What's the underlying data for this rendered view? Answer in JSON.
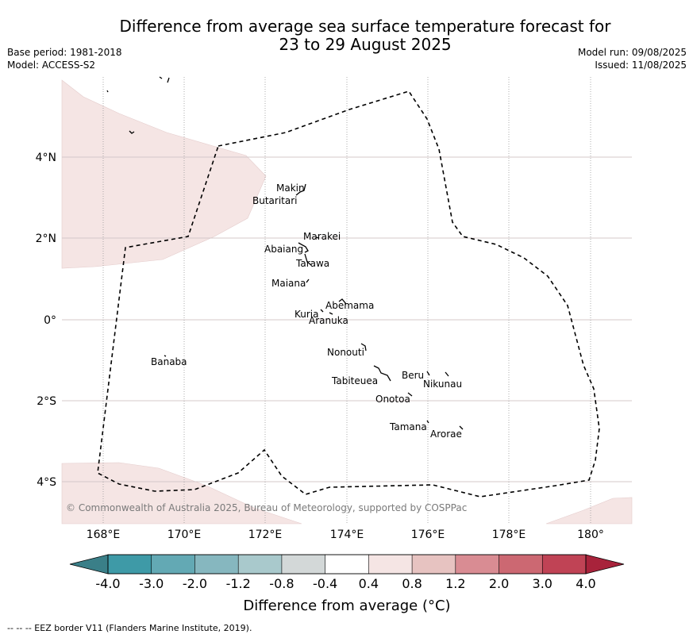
{
  "title_line1": "Difference from average sea surface temperature forecast for",
  "title_line2": "23 to 29 August 2025",
  "base_period": "Base period: 1981-2018",
  "model": "Model: ACCESS-S2",
  "model_run": "Model run: 09/08/2025",
  "issued": "Issued: 11/08/2025",
  "copyright": "© Commonwealth of Australia 2025, Bureau of Meteorology, supported by COSPPac",
  "lon_ticks": [
    "168°E",
    "170°E",
    "172°E",
    "174°E",
    "176°E",
    "178°E",
    "180°"
  ],
  "lat_ticks": [
    "4°N",
    "2°N",
    "0°",
    "2°S",
    "4°S"
  ],
  "islands": [
    {
      "name": "Makin"
    },
    {
      "name": "Butaritari"
    },
    {
      "name": "Marakei"
    },
    {
      "name": "Abaiang"
    },
    {
      "name": "Tarawa"
    },
    {
      "name": "Maiana"
    },
    {
      "name": "Abemama"
    },
    {
      "name": "Kuria"
    },
    {
      "name": "Aranuka"
    },
    {
      "name": "Nonouti"
    },
    {
      "name": "Banaba"
    },
    {
      "name": "Beru"
    },
    {
      "name": "Nikunau"
    },
    {
      "name": "Tabiteuea"
    },
    {
      "name": "Onotoa"
    },
    {
      "name": "Tamana"
    },
    {
      "name": "Arorae"
    }
  ],
  "colorbar": {
    "tick_labels": [
      "-4.0",
      "-3.0",
      "-2.0",
      "-1.2",
      "-0.8",
      "-0.4",
      "0.4",
      "0.8",
      "1.2",
      "2.0",
      "3.0",
      "4.0"
    ],
    "colors": [
      "#3e9aa7",
      "#63a9b4",
      "#86b7bf",
      "#a9c9cc",
      "#d3d8d8",
      "#ffffff",
      "#f5e5e4",
      "#e7c3c1",
      "#d98c93",
      "#cc6872",
      "#c04355"
    ],
    "under_color": "#3a7f88",
    "over_color": "#a8233b",
    "label": "Difference from average (°C)"
  },
  "legend_footer": "-- -- -- EEZ border V11 (Flanders Marine Institute, 2019).",
  "fill_colors": {
    "anomaly_0_4_to_0_8": "#f5e5e4"
  }
}
